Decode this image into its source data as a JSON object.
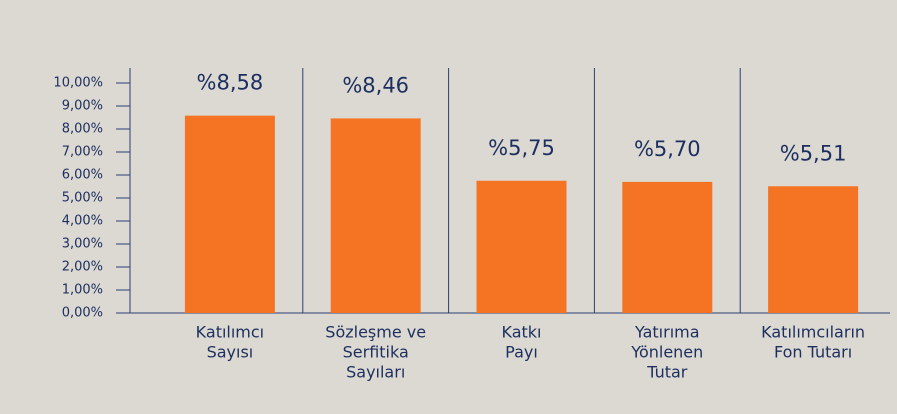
{
  "chart_data": {
    "type": "bar",
    "categories": [
      [
        "Katılımcı",
        "Sayısı"
      ],
      [
        "Sözleşme ve",
        "Serfitika",
        "Sayıları"
      ],
      [
        "Katkı",
        "Payı"
      ],
      [
        "Yatırıma",
        "Yönlenen",
        "Tutar"
      ],
      [
        "Katılımcıların",
        "Fon Tutarı"
      ]
    ],
    "values": [
      8.58,
      8.46,
      5.75,
      5.7,
      5.51
    ],
    "value_labels": [
      "%8,58",
      "%8,46",
      "%5,75",
      "%5,70",
      "%5,51"
    ],
    "color": "#f47424",
    "ylim": [
      0,
      10
    ],
    "yticks": [
      {
        "value": 0,
        "label": "0,00%"
      },
      {
        "value": 1,
        "label": "1,00%"
      },
      {
        "value": 2,
        "label": "2,00%"
      },
      {
        "value": 3,
        "label": "3,00%"
      },
      {
        "value": 4,
        "label": "4,00%"
      },
      {
        "value": 5,
        "label": "5,00%"
      },
      {
        "value": 6,
        "label": "6,00%"
      },
      {
        "value": 7,
        "label": "7,00%"
      },
      {
        "value": 8,
        "label": "8,00%"
      },
      {
        "value": 9,
        "label": "9,00%"
      },
      {
        "value": 10,
        "label": "10,00%"
      }
    ]
  }
}
